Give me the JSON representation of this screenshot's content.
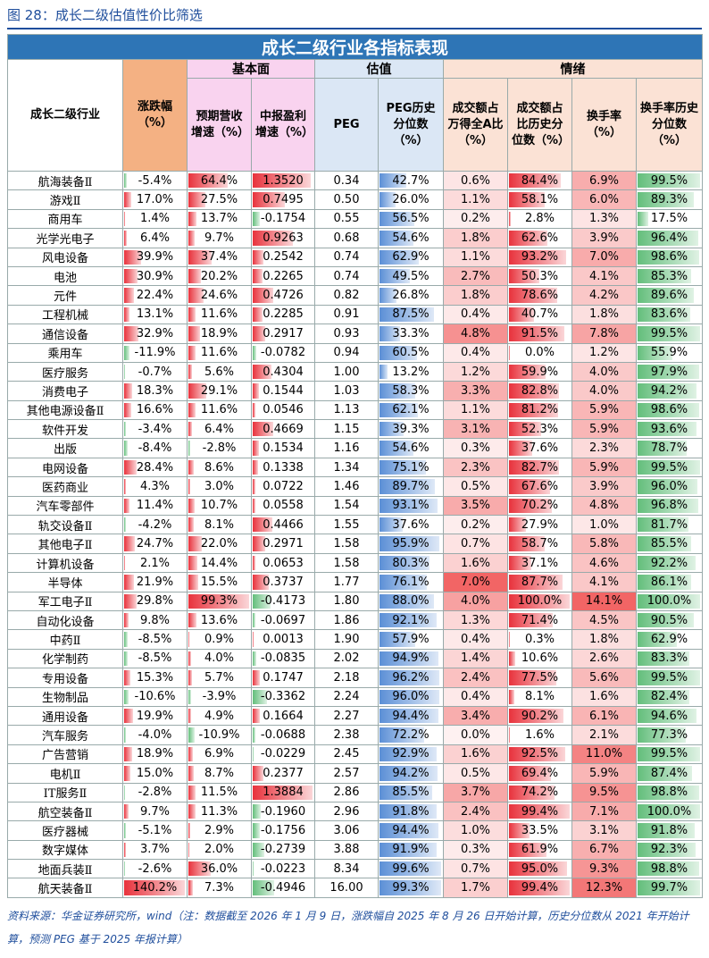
{
  "caption": "图 28：成长二级估值性价比筛选",
  "table": {
    "title": "成长二级行业各指标表现",
    "groups": [
      "基本面",
      "估值",
      "情绪"
    ],
    "headers": [
      "成长二级行业",
      "涨跌幅（%）",
      "预期营收增速（%）",
      "中报盈利增速（%）",
      "PEG",
      "PEG历史分位数（%）",
      "成交额占万得全A比（%）",
      "成交额占比历史分位数（%）",
      "换手率（%）",
      "换手率历史分位数（%）"
    ],
    "rows": [
      [
        "航海装备Ⅱ",
        "-5.4%",
        "64.4%",
        "1.3520",
        "0.34",
        "42.7%",
        "0.6%",
        "84.4%",
        "6.9%",
        "99.5%"
      ],
      [
        "游戏Ⅱ",
        "17.0%",
        "27.5%",
        "0.7495",
        "0.50",
        "26.0%",
        "1.1%",
        "58.1%",
        "6.0%",
        "89.3%"
      ],
      [
        "商用车",
        "1.4%",
        "13.7%",
        "-0.1754",
        "0.55",
        "56.5%",
        "0.2%",
        "2.8%",
        "1.3%",
        "17.5%"
      ],
      [
        "光学光电子",
        "6.4%",
        "9.7%",
        "0.9263",
        "0.68",
        "54.6%",
        "1.8%",
        "62.6%",
        "3.9%",
        "96.4%"
      ],
      [
        "风电设备",
        "39.9%",
        "37.4%",
        "0.2542",
        "0.74",
        "62.9%",
        "1.1%",
        "93.2%",
        "7.0%",
        "98.6%"
      ],
      [
        "电池",
        "30.9%",
        "20.2%",
        "0.2265",
        "0.74",
        "49.5%",
        "2.7%",
        "50.3%",
        "4.1%",
        "85.3%"
      ],
      [
        "元件",
        "22.4%",
        "24.6%",
        "0.4726",
        "0.82",
        "26.8%",
        "1.8%",
        "78.6%",
        "4.2%",
        "89.6%"
      ],
      [
        "工程机械",
        "13.1%",
        "11.6%",
        "0.2285",
        "0.91",
        "87.5%",
        "0.4%",
        "40.7%",
        "1.8%",
        "83.6%"
      ],
      [
        "通信设备",
        "32.9%",
        "18.9%",
        "0.2917",
        "0.93",
        "33.3%",
        "4.8%",
        "91.5%",
        "7.8%",
        "99.5%"
      ],
      [
        "乘用车",
        "-11.9%",
        "11.6%",
        "-0.0782",
        "0.94",
        "60.5%",
        "0.4%",
        "0.0%",
        "1.2%",
        "55.9%"
      ],
      [
        "医疗服务",
        "-0.7%",
        "5.6%",
        "0.4304",
        "1.00",
        "13.2%",
        "1.2%",
        "59.9%",
        "4.0%",
        "97.9%"
      ],
      [
        "消费电子",
        "18.3%",
        "29.1%",
        "0.1544",
        "1.03",
        "58.3%",
        "3.3%",
        "82.8%",
        "4.0%",
        "94.2%"
      ],
      [
        "其他电源设备Ⅱ",
        "16.6%",
        "11.6%",
        "0.0546",
        "1.13",
        "62.1%",
        "1.1%",
        "81.2%",
        "5.9%",
        "98.6%"
      ],
      [
        "软件开发",
        "-3.4%",
        "6.4%",
        "0.4669",
        "1.15",
        "39.3%",
        "3.1%",
        "52.3%",
        "5.9%",
        "93.6%"
      ],
      [
        "出版",
        "-8.4%",
        "-2.8%",
        "0.1534",
        "1.16",
        "54.6%",
        "0.3%",
        "37.6%",
        "2.3%",
        "78.7%"
      ],
      [
        "电网设备",
        "28.4%",
        "8.6%",
        "0.1338",
        "1.34",
        "75.1%",
        "2.3%",
        "82.7%",
        "5.9%",
        "99.5%"
      ],
      [
        "医药商业",
        "4.3%",
        "3.0%",
        "0.0722",
        "1.46",
        "89.7%",
        "0.5%",
        "67.6%",
        "3.9%",
        "96.0%"
      ],
      [
        "汽车零部件",
        "11.4%",
        "10.7%",
        "0.0558",
        "1.54",
        "93.1%",
        "3.5%",
        "70.2%",
        "4.8%",
        "96.8%"
      ],
      [
        "轨交设备Ⅱ",
        "-4.2%",
        "8.1%",
        "0.4466",
        "1.55",
        "37.6%",
        "0.2%",
        "27.9%",
        "1.0%",
        "81.7%"
      ],
      [
        "其他电子Ⅱ",
        "24.7%",
        "22.0%",
        "0.2971",
        "1.58",
        "95.9%",
        "0.7%",
        "58.7%",
        "5.8%",
        "85.5%"
      ],
      [
        "计算机设备",
        "2.1%",
        "14.4%",
        "0.0653",
        "1.58",
        "80.3%",
        "1.6%",
        "37.1%",
        "4.6%",
        "92.2%"
      ],
      [
        "半导体",
        "21.9%",
        "15.5%",
        "0.3737",
        "1.77",
        "76.1%",
        "7.0%",
        "87.7%",
        "4.1%",
        "86.1%"
      ],
      [
        "军工电子Ⅱ",
        "29.8%",
        "99.3%",
        "-0.4173",
        "1.80",
        "88.0%",
        "4.0%",
        "100.0%",
        "14.1%",
        "100.0%"
      ],
      [
        "自动化设备",
        "9.8%",
        "13.6%",
        "-0.0697",
        "1.86",
        "92.1%",
        "1.3%",
        "71.4%",
        "4.5%",
        "90.5%"
      ],
      [
        "中药Ⅱ",
        "-8.5%",
        "0.9%",
        "0.0013",
        "1.90",
        "57.9%",
        "0.4%",
        "0.3%",
        "1.8%",
        "62.9%"
      ],
      [
        "化学制药",
        "-8.5%",
        "4.0%",
        "-0.0835",
        "2.02",
        "94.9%",
        "1.4%",
        "10.6%",
        "2.6%",
        "83.3%"
      ],
      [
        "专用设备",
        "15.3%",
        "5.7%",
        "0.1747",
        "2.18",
        "96.2%",
        "2.4%",
        "77.5%",
        "5.6%",
        "99.5%"
      ],
      [
        "生物制品",
        "-10.6%",
        "-3.9%",
        "-0.3362",
        "2.24",
        "96.0%",
        "0.4%",
        "8.1%",
        "1.6%",
        "82.4%"
      ],
      [
        "通用设备",
        "19.9%",
        "4.9%",
        "0.1664",
        "2.27",
        "94.4%",
        "3.4%",
        "90.2%",
        "6.1%",
        "94.6%"
      ],
      [
        "汽车服务",
        "-4.0%",
        "-10.9%",
        "-0.0688",
        "2.38",
        "72.2%",
        "0.0%",
        "1.6%",
        "2.1%",
        "77.3%"
      ],
      [
        "广告营销",
        "18.9%",
        "6.9%",
        "-0.0229",
        "2.45",
        "92.9%",
        "1.6%",
        "92.5%",
        "11.0%",
        "99.5%"
      ],
      [
        "电机Ⅱ",
        "15.0%",
        "8.7%",
        "0.2377",
        "2.57",
        "94.2%",
        "0.5%",
        "69.4%",
        "5.9%",
        "87.4%"
      ],
      [
        "IT服务Ⅱ",
        "-2.8%",
        "11.5%",
        "1.3884",
        "2.86",
        "85.5%",
        "3.7%",
        "74.2%",
        "9.5%",
        "98.8%"
      ],
      [
        "航空装备Ⅱ",
        "9.7%",
        "11.3%",
        "-0.1960",
        "2.96",
        "91.8%",
        "2.4%",
        "99.4%",
        "7.1%",
        "100.0%"
      ],
      [
        "医疗器械",
        "-5.1%",
        "2.9%",
        "-0.1756",
        "3.06",
        "94.4%",
        "1.0%",
        "33.5%",
        "3.1%",
        "91.8%"
      ],
      [
        "数字媒体",
        "3.7%",
        "2.0%",
        "-0.2739",
        "3.88",
        "91.9%",
        "0.3%",
        "61.9%",
        "6.7%",
        "92.3%"
      ],
      [
        "地面兵装Ⅱ",
        "-2.6%",
        "36.0%",
        "-0.0223",
        "8.34",
        "99.6%",
        "0.7%",
        "95.0%",
        "9.3%",
        "98.8%"
      ],
      [
        "航天装备Ⅱ",
        "140.2%",
        "7.3%",
        "-0.4946",
        "16.00",
        "99.3%",
        "1.7%",
        "99.4%",
        "12.3%",
        "99.7%"
      ]
    ]
  },
  "source": "资料来源：华金证券研究所，wind（注：数据截至 2026 年 1 月 9 日，涨跌幅自 2025 年 8 月 26 日开始计算，历史分位数从 2021 年开始计算，预测 PEG 基于 2025 年报计算）"
}
